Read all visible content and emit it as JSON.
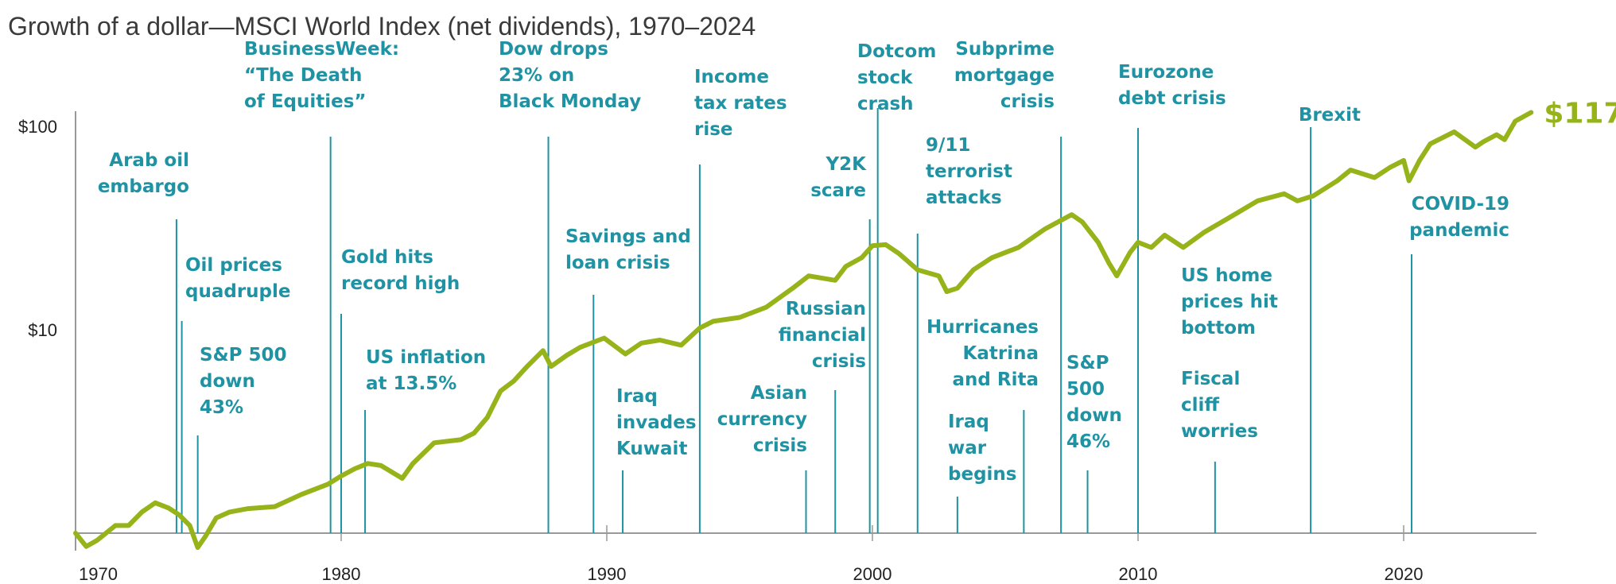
{
  "chart_data": {
    "type": "line",
    "title": "Growth of a dollar—MSCI World Index (net dividends), 1970–2024",
    "xlabel": "",
    "ylabel": "",
    "xlim": [
      1970,
      2025
    ],
    "ylim": [
      0.8,
      130
    ],
    "yscale": "log",
    "grid": false,
    "x_ticks": [
      {
        "value": 1970,
        "label": "1970"
      },
      {
        "value": 1980,
        "label": "1980"
      },
      {
        "value": 1990,
        "label": "1990"
      },
      {
        "value": 2000,
        "label": "2000"
      },
      {
        "value": 2010,
        "label": "2010"
      },
      {
        "value": 2020,
        "label": "2020"
      }
    ],
    "y_ticks": [
      {
        "value": 100,
        "label": "$100"
      },
      {
        "value": 10,
        "label": "$10"
      }
    ],
    "colors": {
      "line": "#96b41a",
      "annotation": "#1f93a3",
      "axis": "#999999",
      "title": "#3a3a3a"
    },
    "series": [
      {
        "x": [
          1970.0,
          1970.4,
          1970.8,
          1971.5,
          1972.0,
          1972.5,
          1973.0,
          1973.5,
          1973.9,
          1974.3,
          1974.6,
          1974.9,
          1975.3,
          1975.8,
          1976.5,
          1977.5,
          1978.5,
          1979.5,
          1980.0,
          1980.5,
          1981.0,
          1981.5,
          1982.3,
          1982.7,
          1983.5,
          1984.5,
          1985.0,
          1985.5,
          1986.0,
          1986.5,
          1987.0,
          1987.6,
          1987.9,
          1988.5,
          1989.0,
          1989.9,
          1990.7,
          1991.3,
          1992.0,
          1992.8,
          1993.5,
          1994.0,
          1995.0,
          1996.0,
          1997.0,
          1997.6,
          1998.6,
          1999.0,
          1999.6,
          2000.0,
          2000.5,
          2001.0,
          2001.7,
          2002.5,
          2002.8,
          2003.2,
          2003.8,
          2004.5,
          2005.5,
          2006.5,
          2007.5,
          2007.9,
          2008.5,
          2008.9,
          2009.2,
          2009.7,
          2010.0,
          2010.5,
          2011.0,
          2011.7,
          2012.5,
          2013.5,
          2014.5,
          2015.5,
          2016.0,
          2016.6,
          2017.5,
          2018.0,
          2018.9,
          2019.5,
          2020.0,
          2020.2,
          2020.6,
          2021.0,
          2021.9,
          2022.7,
          2023.0,
          2023.5,
          2023.8,
          2024.2,
          2024.8
        ],
        "y": [
          1.0,
          0.86,
          0.92,
          1.09,
          1.09,
          1.27,
          1.41,
          1.33,
          1.23,
          1.09,
          0.85,
          0.97,
          1.19,
          1.27,
          1.32,
          1.35,
          1.55,
          1.74,
          1.91,
          2.07,
          2.2,
          2.15,
          1.86,
          2.2,
          2.78,
          2.88,
          3.1,
          3.7,
          5.0,
          5.6,
          6.6,
          7.9,
          6.6,
          7.5,
          8.2,
          9.1,
          7.6,
          8.6,
          8.9,
          8.4,
          10.2,
          11.0,
          11.5,
          12.9,
          16,
          18.4,
          17.5,
          20.5,
          22.6,
          25.9,
          26.2,
          23.7,
          19.7,
          18.4,
          15.4,
          16,
          19.7,
          22.6,
          25.4,
          31.3,
          36.8,
          33.9,
          26.9,
          21.3,
          18.4,
          24,
          26.9,
          25.4,
          29.2,
          25.4,
          30.2,
          36,
          43,
          46.6,
          43,
          45.5,
          54,
          61,
          56,
          63,
          68,
          54,
          68,
          82,
          94,
          79,
          84,
          91,
          86,
          106,
          117
        ]
      }
    ],
    "end_label": "$117",
    "annotations": [
      {
        "year": 1973.8,
        "lines": [
          "Arab oil",
          "embargo"
        ]
      },
      {
        "year": 1974.0,
        "lines": [
          "Oil prices",
          "quadruple"
        ]
      },
      {
        "year": 1974.6,
        "lines": [
          "S&P 500",
          "down",
          "43%"
        ]
      },
      {
        "year": 1979.6,
        "lines": [
          "BusinessWeek:",
          "“The Death",
          "of Equities”"
        ]
      },
      {
        "year": 1980.0,
        "lines": [
          "Gold hits",
          "record high"
        ]
      },
      {
        "year": 1980.9,
        "lines": [
          "US inflation",
          "at 13.5%"
        ]
      },
      {
        "year": 1987.8,
        "lines": [
          "Dow drops",
          "23% on",
          "Black Monday"
        ]
      },
      {
        "year": 1989.5,
        "lines": [
          "Savings and",
          "loan crisis"
        ]
      },
      {
        "year": 1990.6,
        "lines": [
          "Iraq",
          "invades",
          "Kuwait"
        ]
      },
      {
        "year": 1993.5,
        "lines": [
          "Income",
          "tax rates",
          "rise"
        ]
      },
      {
        "year": 1997.5,
        "lines": [
          "Asian",
          "currency",
          "crisis"
        ]
      },
      {
        "year": 1998.6,
        "lines": [
          "Russian",
          "financial",
          "crisis"
        ]
      },
      {
        "year": 1999.9,
        "lines": [
          "Y2K",
          "scare"
        ]
      },
      {
        "year": 2000.2,
        "lines": [
          "Dotcom",
          "stock",
          "crash"
        ]
      },
      {
        "year": 2001.7,
        "lines": [
          "9/11",
          "terrorist",
          "attacks"
        ]
      },
      {
        "year": 2003.2,
        "lines": [
          "Iraq",
          "war",
          "begins"
        ]
      },
      {
        "year": 2005.7,
        "lines": [
          "Hurricanes",
          "Katrina",
          "and Rita"
        ]
      },
      {
        "year": 2007.1,
        "lines": [
          "Subprime",
          "mortgage",
          "crisis"
        ]
      },
      {
        "year": 2008.1,
        "lines": [
          "S&P",
          "500",
          "down",
          "46%"
        ]
      },
      {
        "year": 2010.0,
        "lines": [
          "Eurozone",
          "debt crisis"
        ]
      },
      {
        "year": 2012.9,
        "lines": [
          "US home",
          "prices hit",
          "bottom"
        ]
      },
      {
        "year": 2012.9,
        "lines": [
          "Fiscal",
          "cliff",
          "worries"
        ]
      },
      {
        "year": 2016.5,
        "lines": [
          "Brexit"
        ]
      },
      {
        "year": 2020.3,
        "lines": [
          "COVID-19",
          "pandemic"
        ]
      }
    ]
  }
}
